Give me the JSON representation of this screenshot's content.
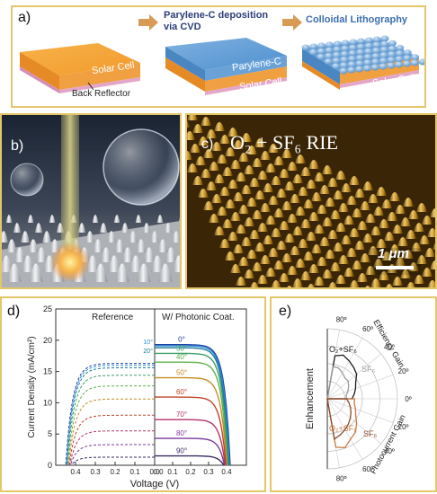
{
  "panel_a": {
    "label": "a)",
    "step1_caption": "Parylene-C deposition via CVD",
    "step2_caption": "Colloidal Lithography",
    "solar_cell_1": "Solar Cell",
    "back_reflector": "Back Reflector",
    "parylene": "Parylene-C",
    "solar_cell_2": "Solar Cell",
    "solar_cell_3": "Solar Cell"
  },
  "panel_b": {
    "label": "b)"
  },
  "panel_c": {
    "label": "c)",
    "title": "O₂ + SF₆ RIE",
    "scale_bar": "1 μm"
  },
  "panel_d": {
    "label": "d)"
  },
  "panel_e": {
    "label": "e)"
  },
  "chart_data": [
    {
      "type": "line",
      "title": "",
      "xlabel": "Voltage (V)",
      "ylabel": "Current Density (mA/cm²)",
      "ylim": [
        0,
        25
      ],
      "y_ticks": [
        "0",
        "5",
        "10",
        "15",
        "20",
        "25"
      ],
      "left_panel": {
        "title": "Reference",
        "x_ticks": [
          "0.4",
          "0.3",
          "0.2",
          "0.1",
          "0.0"
        ],
        "style": "dashed"
      },
      "right_panel": {
        "title": "W/ Photonic Coat.",
        "x_ticks": [
          "0.0",
          "0.1",
          "0.2",
          "0.3",
          "0.4"
        ],
        "style": "solid"
      },
      "series": [
        {
          "name": "0°",
          "color": "#1f3fa6",
          "jsc_ref": 16.3,
          "jsc_coat": 19.3
        },
        {
          "name": "10°",
          "color": "#2c8fd0",
          "jsc_ref": 16.0,
          "jsc_coat": 19.1
        },
        {
          "name": "20°",
          "color": "#1a7a9a",
          "jsc_ref": 15.6,
          "jsc_coat": 18.8
        },
        {
          "name": "30°",
          "color": "#3a9e6b",
          "jsc_ref": 14.4,
          "jsc_coat": 17.9
        },
        {
          "name": "40°",
          "color": "#5fb24a",
          "jsc_ref": 12.7,
          "jsc_coat": 16.5
        },
        {
          "name": "50°",
          "color": "#c98a22",
          "jsc_ref": 10.6,
          "jsc_coat": 14.0
        },
        {
          "name": "60°",
          "color": "#c0452a",
          "jsc_ref": 8.0,
          "jsc_coat": 10.9
        },
        {
          "name": "70°",
          "color": "#b8326a",
          "jsc_ref": 5.5,
          "jsc_coat": 7.3
        },
        {
          "name": "80°",
          "color": "#7a3a9a",
          "jsc_ref": 3.3,
          "jsc_coat": 4.3
        },
        {
          "name": "90°",
          "color": "#3c2a66",
          "jsc_ref": 1.3,
          "jsc_coat": 1.5
        }
      ]
    },
    {
      "type": "polar",
      "ylabel": "Enhancement",
      "angle_labels": [
        "80º",
        "60º",
        "40º",
        "20º",
        "0º",
        "20º",
        "40º",
        "60º",
        "80º"
      ],
      "upper_title": "Efficiency Gain",
      "lower_title": "Photocurrent Gain",
      "series": [
        {
          "name": "O₂+SF₆",
          "color": "#1a1a1a",
          "half": "upper",
          "angles": [
            0,
            10,
            20,
            30,
            40,
            50,
            60,
            70,
            80
          ],
          "values": [
            0.45,
            0.5,
            0.55,
            0.6,
            0.7,
            0.75,
            0.8,
            0.85,
            0.8
          ]
        },
        {
          "name": "SF₆",
          "color": "#9a9a9a",
          "half": "upper",
          "angles": [
            0,
            10,
            20,
            30,
            40,
            50,
            60,
            70,
            80
          ],
          "values": [
            0.35,
            0.35,
            0.4,
            0.45,
            0.5,
            0.5,
            0.55,
            0.6,
            0.6
          ]
        },
        {
          "name": "O₂+SF₆",
          "color": "#c87a45",
          "half": "lower",
          "angles": [
            0,
            10,
            20,
            30,
            40,
            50,
            60,
            70,
            80
          ],
          "values": [
            0.5,
            0.5,
            0.55,
            0.6,
            0.7,
            0.8,
            0.85,
            0.95,
            0.9
          ]
        },
        {
          "name": "SF₆",
          "color": "#8a4a2a",
          "half": "lower",
          "angles": [
            0,
            10,
            20,
            30,
            40,
            50,
            60,
            70,
            80
          ],
          "values": [
            0.35,
            0.4,
            0.45,
            0.5,
            0.55,
            0.6,
            0.65,
            0.7,
            0.75
          ]
        }
      ]
    }
  ]
}
